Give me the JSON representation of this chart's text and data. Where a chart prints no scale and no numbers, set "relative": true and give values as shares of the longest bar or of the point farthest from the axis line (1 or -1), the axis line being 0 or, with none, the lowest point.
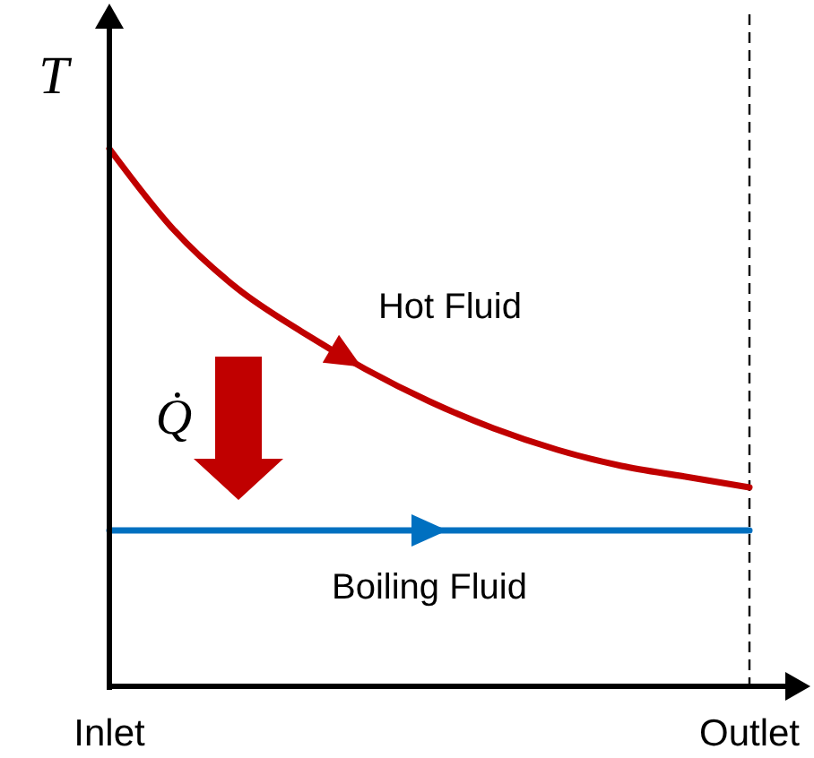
{
  "chart_data": {
    "type": "line",
    "relative": true,
    "ylabel": "T",
    "legend": false,
    "line_style": "solid",
    "marker": "none",
    "categories": [
      "Inlet",
      null,
      null,
      null,
      null,
      null,
      null,
      null,
      null,
      null,
      "Outlet"
    ],
    "series": [
      {
        "name": "Hot Fluid",
        "color": "#c00000",
        "values": [
          1,
          0.85,
          0.74,
          0.66,
          0.59,
          0.53,
          0.48,
          0.44,
          0.41,
          0.39,
          0.37
        ]
      },
      {
        "name": "Boiling Fluid",
        "color": "#0070c0",
        "values": [
          0.29,
          0.29,
          0.29,
          0.29,
          0.29,
          0.29,
          0.29,
          0.29,
          0.29,
          0.29,
          0.29
        ]
      }
    ],
    "ref_lines": [
      {
        "axis": "x",
        "value": "Outlet",
        "line_style": "dashed",
        "color": "#000000"
      }
    ],
    "annotations": [
      "Q̇"
    ]
  }
}
